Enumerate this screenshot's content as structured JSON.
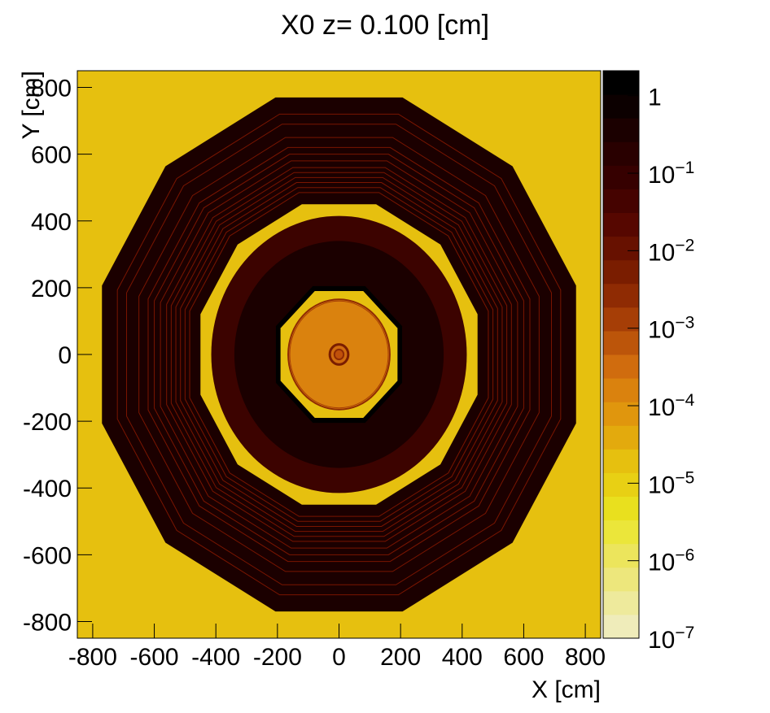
{
  "chart_data": {
    "type": "colormap",
    "title": "X0 z=  0.100 [cm]",
    "x_label": "X [cm]",
    "y_label": "Y [cm]",
    "xlim": [
      -850,
      850
    ],
    "ylim": [
      -850,
      850
    ],
    "xticks": [
      -800,
      -600,
      -400,
      -200,
      0,
      200,
      400,
      600,
      800
    ],
    "yticks": [
      -800,
      -600,
      -400,
      -200,
      0,
      200,
      400,
      600,
      800
    ],
    "zlim": [
      1e-07,
      2.1
    ],
    "log_z": true,
    "zticks": [
      {
        "value": 1e-07,
        "label": "10",
        "exponent": "−7"
      },
      {
        "value": 1e-06,
        "label": "10",
        "exponent": "−6"
      },
      {
        "value": 1e-05,
        "label": "10",
        "exponent": "−5"
      },
      {
        "value": 0.0001,
        "label": "10",
        "exponent": "−4"
      },
      {
        "value": 0.001,
        "label": "10",
        "exponent": "−3"
      },
      {
        "value": 0.01,
        "label": "10",
        "exponent": "−2"
      },
      {
        "value": 0.1,
        "label": "10",
        "exponent": "−1"
      },
      1
    ],
    "palette": [
      "#efecba",
      "#eeea9c",
      "#ede77c",
      "#ece55c",
      "#ebe63a",
      "#e9e01e",
      "#e8d014",
      "#e6c00f",
      "#e3aa0d",
      "#e0960d",
      "#da820e",
      "#d06c0e",
      "#bc550a",
      "#a63e06",
      "#8f2b03",
      "#7a1d00",
      "#671100",
      "#560700",
      "#450300",
      "#360000",
      "#290000",
      "#1b0000",
      "#0c0000",
      "#000000"
    ]
  }
}
